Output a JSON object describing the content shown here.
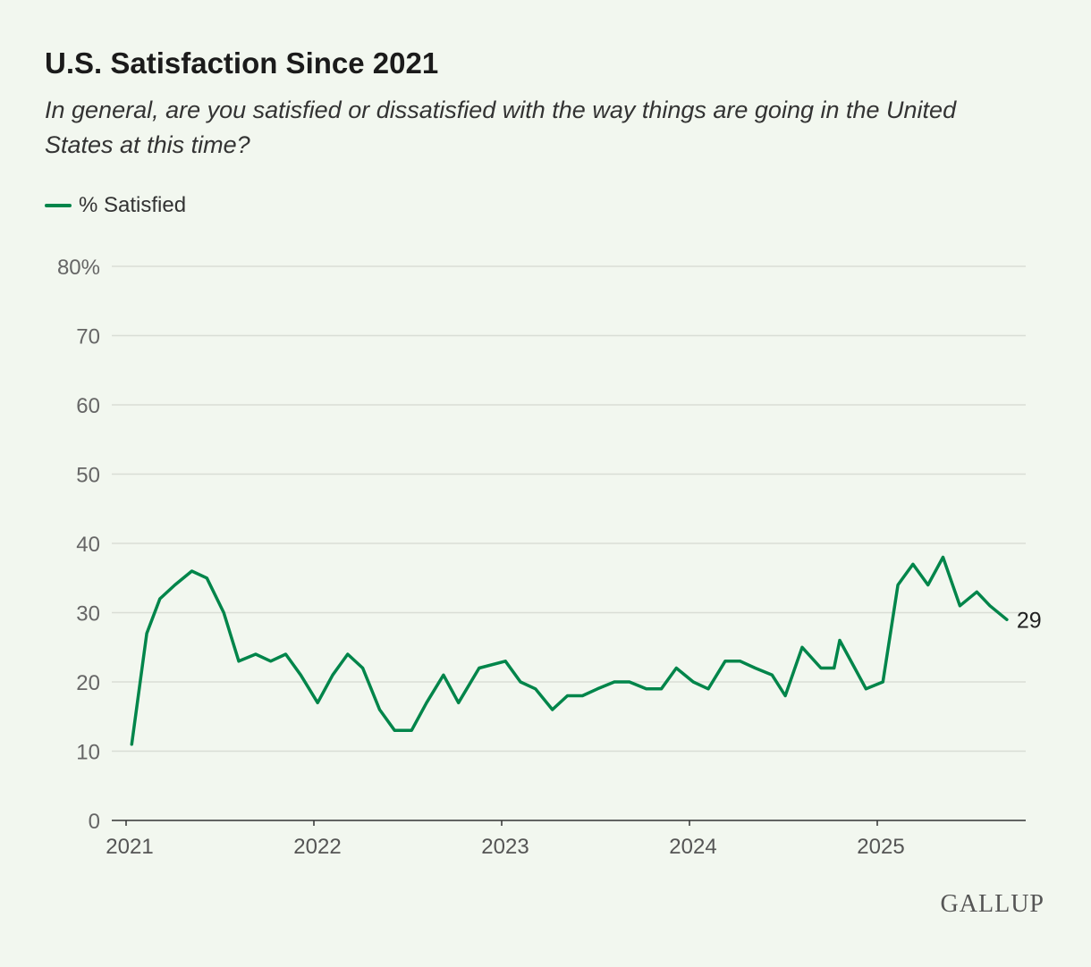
{
  "header": {
    "title": "U.S. Satisfaction Since 2021",
    "subtitle": "In general, are you satisfied or dissatisfied with the way things are going in the United States at this time?"
  },
  "logo": "GALLUP",
  "chart_data": {
    "type": "line",
    "title": "U.S. Satisfaction Since 2021",
    "xlabel": "",
    "ylabel": "% Satisfied",
    "ylim": [
      0,
      80
    ],
    "xlim": [
      2021,
      2025.95
    ],
    "yticks": [
      0,
      10,
      20,
      30,
      40,
      50,
      60,
      70,
      80
    ],
    "ytick_labels": [
      "0",
      "10",
      "20",
      "30",
      "40",
      "50",
      "60",
      "70",
      "80%"
    ],
    "xticks": [
      2021,
      2022,
      2023,
      2024,
      2025
    ],
    "xtick_labels": [
      "2021",
      "2022",
      "2023",
      "2024",
      "2025"
    ],
    "grid": true,
    "legend": "top-left",
    "colors": {
      "line": "#00854a"
    },
    "series": [
      {
        "name": "% Satisfied",
        "end_label": "29",
        "x": [
          2021.03,
          2021.11,
          2021.18,
          2021.26,
          2021.35,
          2021.43,
          2021.52,
          2021.6,
          2021.69,
          2021.77,
          2021.85,
          2021.93,
          2022.02,
          2022.1,
          2022.18,
          2022.26,
          2022.35,
          2022.43,
          2022.52,
          2022.6,
          2022.69,
          2022.77,
          2022.88,
          2023.02,
          2023.1,
          2023.18,
          2023.27,
          2023.35,
          2023.43,
          2023.51,
          2023.6,
          2023.68,
          2023.77,
          2023.85,
          2023.93,
          2024.02,
          2024.1,
          2024.19,
          2024.27,
          2024.35,
          2024.44,
          2024.51,
          2024.6,
          2024.7,
          2024.77,
          2024.8,
          2024.88,
          2024.94,
          2025.03,
          2025.11,
          2025.19,
          2025.27,
          2025.35,
          2025.44,
          2025.53,
          2025.6,
          2025.69
        ],
        "values": [
          11,
          27,
          32,
          34,
          36,
          35,
          30,
          23,
          24,
          23,
          24,
          21,
          17,
          21,
          24,
          22,
          16,
          13,
          13,
          17,
          21,
          17,
          22,
          23,
          20,
          19,
          16,
          18,
          18,
          19,
          20,
          20,
          19,
          19,
          22,
          20,
          19,
          23,
          23,
          22,
          21,
          18,
          25,
          22,
          22,
          26,
          22,
          19,
          20,
          34,
          37,
          34,
          38,
          31,
          33,
          31,
          29
        ]
      }
    ]
  }
}
